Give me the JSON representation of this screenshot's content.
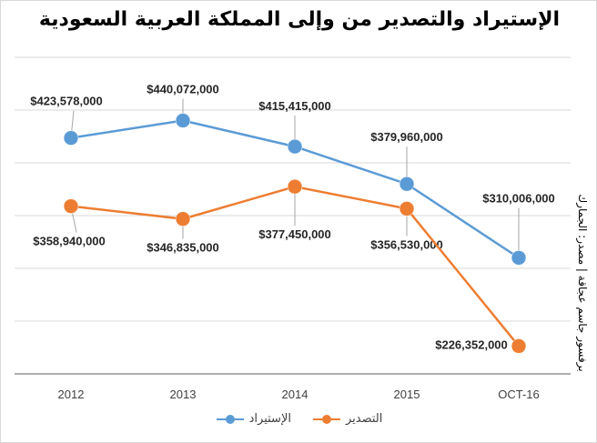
{
  "chart_data": {
    "type": "line",
    "title": "الإستيراد والتصدير من وإلى المملكة العربية السعودية",
    "side_note": "برفسور جاسم عجاقة | مصدر: الجمارك",
    "categories": [
      "2012",
      "2013",
      "2014",
      "2015",
      "OCT-16"
    ],
    "series": [
      {
        "name": "الإستيراد",
        "color": "#5b9bd5",
        "values": [
          423578000,
          440072000,
          415415000,
          379960000,
          310006000
        ],
        "labels": [
          "$423,578,000",
          "$440,072,000",
          "$415,415,000",
          "$379,960,000",
          "$310,006,000"
        ]
      },
      {
        "name": "التصدير",
        "color": "#ed7d31",
        "values": [
          358940000,
          346835000,
          377450000,
          356530000,
          226352000
        ],
        "labels": [
          "$358,940,000",
          "$346,835,000",
          "$377,450,000",
          "$356,530,000",
          "$226,352,000"
        ]
      }
    ],
    "ylim": [
      200000000,
      500000000
    ],
    "grid": true,
    "legend_position": "bottom"
  }
}
